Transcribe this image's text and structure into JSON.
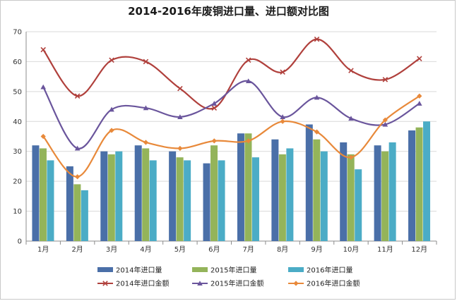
{
  "chart_data": {
    "type": "bar",
    "title": "2014-2016年废铜进口量、进口额对比图",
    "categories": [
      "1月",
      "2月",
      "3月",
      "4月",
      "5月",
      "6月",
      "7月",
      "8月",
      "9月",
      "10月",
      "11月",
      "12月"
    ],
    "ylim": [
      0,
      70
    ],
    "yticks": [
      0,
      10,
      20,
      30,
      40,
      50,
      60,
      70
    ],
    "grid": true,
    "legend_position": "bottom",
    "bar_series": [
      {
        "name": "2014年进口量",
        "color": "#4a6fa8",
        "values": [
          32,
          25,
          30,
          32,
          30,
          26,
          36,
          34,
          39,
          33,
          32,
          37
        ]
      },
      {
        "name": "2015年进口量",
        "color": "#94b45a",
        "values": [
          31,
          19,
          29,
          31,
          28,
          32,
          36,
          29,
          34,
          29,
          30,
          38
        ]
      },
      {
        "name": "2016年进口量",
        "color": "#4bacc6",
        "values": [
          27,
          17,
          30,
          27,
          27,
          27,
          28,
          31,
          30,
          24,
          33,
          40
        ]
      }
    ],
    "line_series": [
      {
        "name": "2014年进口金额",
        "color": "#b0403c",
        "marker": "x",
        "values": [
          64,
          48.5,
          60.5,
          60,
          51,
          44.5,
          60.5,
          56.5,
          67.5,
          57,
          54,
          61
        ]
      },
      {
        "name": "2015年进口金额",
        "color": "#6a559c",
        "marker": "triangle",
        "values": [
          51.5,
          31,
          44,
          44.5,
          41.5,
          46,
          53.5,
          41.5,
          48,
          41,
          39,
          46
        ]
      },
      {
        "name": "2016年进口金额",
        "color": "#e8893a",
        "marker": "diamond",
        "values": [
          35,
          21.5,
          37,
          33,
          31,
          33.5,
          33.5,
          40,
          36.5,
          28,
          40.5,
          48.5
        ]
      }
    ]
  }
}
